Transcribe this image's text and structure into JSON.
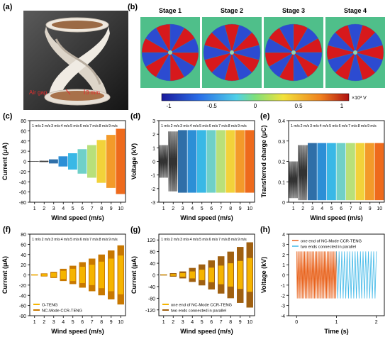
{
  "panel_labels": {
    "a": "(a)",
    "b": "(b)",
    "c": "(c)",
    "d": "(d)",
    "e": "(e)",
    "f": "(f)",
    "g": "(g)",
    "h": "(h)"
  },
  "photo": {
    "air_gap_label": "Air gap",
    "dimension_label": "3 mm"
  },
  "stages": {
    "titles": [
      "Stage 1",
      "Stage 2",
      "Stage 3",
      "Stage 4"
    ],
    "colorbar": {
      "ticks": [
        "-1",
        "-0.5",
        "0",
        "0.5",
        "1"
      ],
      "unit": "×10³ V"
    },
    "colors": {
      "red": "#d7191c",
      "blue": "#2c4bd1",
      "bg": "#4fbf8a"
    }
  },
  "speed_labels": [
    "1 m/s",
    "2 m/s",
    "3 m/s",
    "4 m/s",
    "5 m/s",
    "6 m/s",
    "7 m/s",
    "8 m/s",
    "9 m/s"
  ],
  "chart_data": [
    {
      "id": "c",
      "type": "area",
      "xlabel": "Wind speed (m/s)",
      "ylabel": "Current (μA)",
      "xlim": [
        0.5,
        10.5
      ],
      "ylim": [
        -80,
        80
      ],
      "yticks": [
        -80,
        -60,
        -40,
        -20,
        0,
        20,
        40,
        60,
        80
      ],
      "x_ticks": [
        1,
        2,
        3,
        4,
        5,
        6,
        7,
        8,
        9,
        10
      ],
      "segments": [
        {
          "speed": 1,
          "amplitude": 0.3
        },
        {
          "speed": 2,
          "amplitude": 1
        },
        {
          "speed": 3,
          "amplitude": 4
        },
        {
          "speed": 4,
          "amplitude": 10
        },
        {
          "speed": 5,
          "amplitude": 16
        },
        {
          "speed": 6,
          "amplitude": 24
        },
        {
          "speed": 7,
          "amplitude": 32
        },
        {
          "speed": 8,
          "amplitude": 42
        },
        {
          "speed": 9,
          "amplitude": 52
        },
        {
          "speed": 10,
          "amplitude": 64
        }
      ]
    },
    {
      "id": "d",
      "type": "area",
      "xlabel": "Wind speed (m/s)",
      "ylabel": "Voltage (kV)",
      "xlim": [
        0.5,
        10.5
      ],
      "ylim": [
        -3,
        3
      ],
      "yticks": [
        -3,
        -2,
        -1,
        0,
        1,
        2,
        3
      ],
      "x_ticks": [
        1,
        2,
        3,
        4,
        5,
        6,
        7,
        8,
        9,
        10
      ],
      "segments": [
        {
          "speed": 1,
          "amplitude": 1.2
        },
        {
          "speed": 2,
          "amplitude": 2.2
        },
        {
          "speed": 3,
          "amplitude": 2.3
        },
        {
          "speed": 4,
          "amplitude": 2.3
        },
        {
          "speed": 5,
          "amplitude": 2.3
        },
        {
          "speed": 6,
          "amplitude": 2.3
        },
        {
          "speed": 7,
          "amplitude": 2.3
        },
        {
          "speed": 8,
          "amplitude": 2.3
        },
        {
          "speed": 9,
          "amplitude": 2.3
        },
        {
          "speed": 10,
          "amplitude": 2.3
        }
      ]
    },
    {
      "id": "e",
      "type": "area",
      "xlabel": "Wind speed (m/s)",
      "ylabel": "Transferred charge (μC)",
      "xlim": [
        0.5,
        10.5
      ],
      "ylim": [
        0,
        0.4
      ],
      "yticks": [
        0,
        0.1,
        0.2,
        0.3,
        0.4
      ],
      "x_ticks": [
        1,
        2,
        3,
        4,
        5,
        6,
        7,
        8,
        9,
        10
      ],
      "segments": [
        {
          "speed": 1,
          "low": 0.02,
          "high": 0.2
        },
        {
          "speed": 2,
          "low": 0.01,
          "high": 0.28
        },
        {
          "speed": 3,
          "low": 0.01,
          "high": 0.29
        },
        {
          "speed": 4,
          "low": 0.01,
          "high": 0.29
        },
        {
          "speed": 5,
          "low": 0.01,
          "high": 0.29
        },
        {
          "speed": 6,
          "low": 0.01,
          "high": 0.29
        },
        {
          "speed": 7,
          "low": 0.01,
          "high": 0.29
        },
        {
          "speed": 8,
          "low": 0.01,
          "high": 0.29
        },
        {
          "speed": 9,
          "low": 0.01,
          "high": 0.29
        },
        {
          "speed": 10,
          "low": 0.01,
          "high": 0.29
        }
      ]
    },
    {
      "id": "f",
      "type": "area",
      "xlabel": "Wind speed (m/s)",
      "ylabel": "Current (μA)",
      "xlim": [
        0.5,
        10.5
      ],
      "ylim": [
        -80,
        80
      ],
      "yticks": [
        -80,
        -60,
        -40,
        -20,
        0,
        20,
        40,
        60,
        80
      ],
      "x_ticks": [
        1,
        2,
        3,
        4,
        5,
        6,
        7,
        8,
        9,
        10
      ],
      "legend": [
        "O-TENG",
        "NC-Mode CCR-TENG"
      ],
      "legend_colors": [
        "#f5b400",
        "#c87800"
      ],
      "series": [
        {
          "name": "O-TENG",
          "values": [
            1,
            2,
            4,
            8,
            12,
            16,
            20,
            26,
            32,
            38
          ]
        },
        {
          "name": "NC-Mode CCR-TENG",
          "values": [
            1,
            3,
            6,
            12,
            18,
            25,
            32,
            40,
            48,
            58
          ]
        }
      ]
    },
    {
      "id": "g",
      "type": "area",
      "xlabel": "Wind speed (m/s)",
      "ylabel": "Current (μA)",
      "xlim": [
        0.5,
        10.5
      ],
      "ylim": [
        -140,
        140
      ],
      "yticks": [
        -120,
        -80,
        -40,
        0,
        40,
        80,
        120
      ],
      "x_ticks": [
        1,
        2,
        3,
        4,
        5,
        6,
        7,
        8,
        9,
        10
      ],
      "legend": [
        "one end of NC-Mode CCR-TENG",
        "two ends connected in parallel"
      ],
      "legend_colors": [
        "#f5b400",
        "#a06010"
      ],
      "series": [
        {
          "name": "one end of NC-Mode CCR-TENG",
          "values": [
            1,
            3,
            6,
            12,
            18,
            25,
            32,
            40,
            48,
            58
          ]
        },
        {
          "name": "two ends connected in parallel",
          "values": [
            2,
            6,
            12,
            24,
            36,
            50,
            64,
            80,
            96,
            112
          ]
        }
      ]
    },
    {
      "id": "h",
      "type": "line",
      "xlabel": "Time (s)",
      "ylabel": "Voltage (kV)",
      "xlim": [
        -0.2,
        2.2
      ],
      "ylim": [
        -4,
        4
      ],
      "yticks": [
        -4,
        -3,
        -2,
        -1,
        0,
        1,
        2,
        3,
        4
      ],
      "x_ticks": [
        0,
        1,
        2
      ],
      "legend": [
        "one end of NC-Mode CCR-TENG",
        "two ends connected in parallel"
      ],
      "legend_colors": [
        "#e8611a",
        "#3fb8e8"
      ],
      "series": [
        {
          "name": "one end of NC-Mode CCR-TENG",
          "t_range": [
            0,
            1
          ],
          "amplitude": 2.3
        },
        {
          "name": "two ends connected in parallel",
          "t_range": [
            1,
            2
          ],
          "amplitude": 2.3
        }
      ]
    }
  ]
}
